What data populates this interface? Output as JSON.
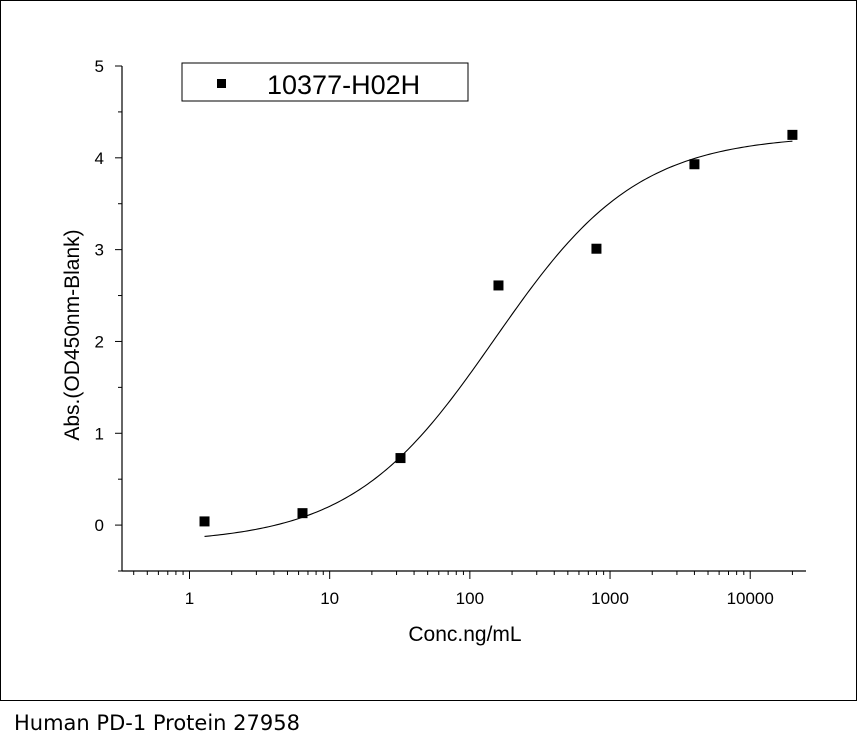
{
  "caption": "Human PD-1 Protein 27958",
  "chart_data": {
    "type": "scatter",
    "scale": {
      "x": "log",
      "y": "linear"
    },
    "xlabel": "Conc.ng/mL",
    "ylabel": "Abs.(OD450nm-Blank)",
    "xlim": [
      0.33,
      25000
    ],
    "ylim": [
      -0.5,
      5
    ],
    "x_ticks": [
      1,
      10,
      100,
      1000,
      10000
    ],
    "x_tick_labels": [
      "1",
      "10",
      "100",
      "1000",
      "10000"
    ],
    "y_ticks": [
      0,
      1,
      2,
      3,
      4,
      5
    ],
    "y_tick_labels": [
      "0",
      "1",
      "2",
      "3",
      "4",
      "5"
    ],
    "legend": {
      "position": "top-left",
      "entries": [
        "10377-H02H"
      ]
    },
    "series": [
      {
        "name": "10377-H02H",
        "marker": "square",
        "color": "#000000",
        "x": [
          1.28,
          6.4,
          32,
          160,
          800,
          4000,
          20000
        ],
        "y": [
          0.04,
          0.13,
          0.73,
          2.61,
          3.01,
          3.93,
          4.25
        ]
      }
    ],
    "fit_curve": {
      "type": "4PL",
      "color": "#000000",
      "bottom": -0.2,
      "top": 4.25,
      "ec50": 150,
      "hill": 0.85,
      "x_range": [
        1.28,
        20000
      ]
    }
  }
}
